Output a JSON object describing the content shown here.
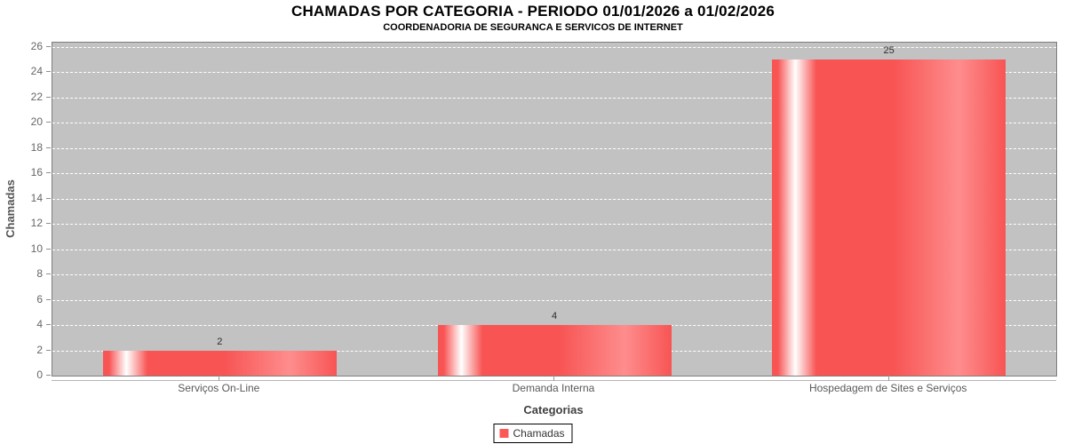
{
  "chart_data": {
    "type": "bar",
    "title": "CHAMADAS POR CATEGORIA - PERIODO 01/01/2026 a 01/02/2026",
    "subtitle": "COORDENADORIA DE SEGURANCA E SERVICOS DE INTERNET",
    "categories": [
      "Serviços On-Line",
      "Demanda Interna",
      "Hospedagem de Sites e Serviços"
    ],
    "values": [
      2,
      4,
      25
    ],
    "series": [
      {
        "name": "Chamadas",
        "values": [
          2,
          4,
          25
        ]
      }
    ],
    "xlabel": "Categorias",
    "ylabel": "Chamadas",
    "ylim": [
      0,
      26
    ],
    "ytick_step": 2,
    "grid": "horizontal white dashed lines on gray plot background",
    "legend_position": "bottom-center",
    "legend": [
      {
        "label": "Chamadas",
        "color": "#fb5757"
      }
    ],
    "colors": {
      "bar_base": "#f85454",
      "bar_highlight": "#ffffff",
      "bar_soft": "#fe8d8d",
      "plot_background": "#c2c2c2",
      "plot_border": "#7e7e7e",
      "gridline": "#ffffff",
      "title_text": "#000000",
      "axis_text": "#666666"
    }
  }
}
